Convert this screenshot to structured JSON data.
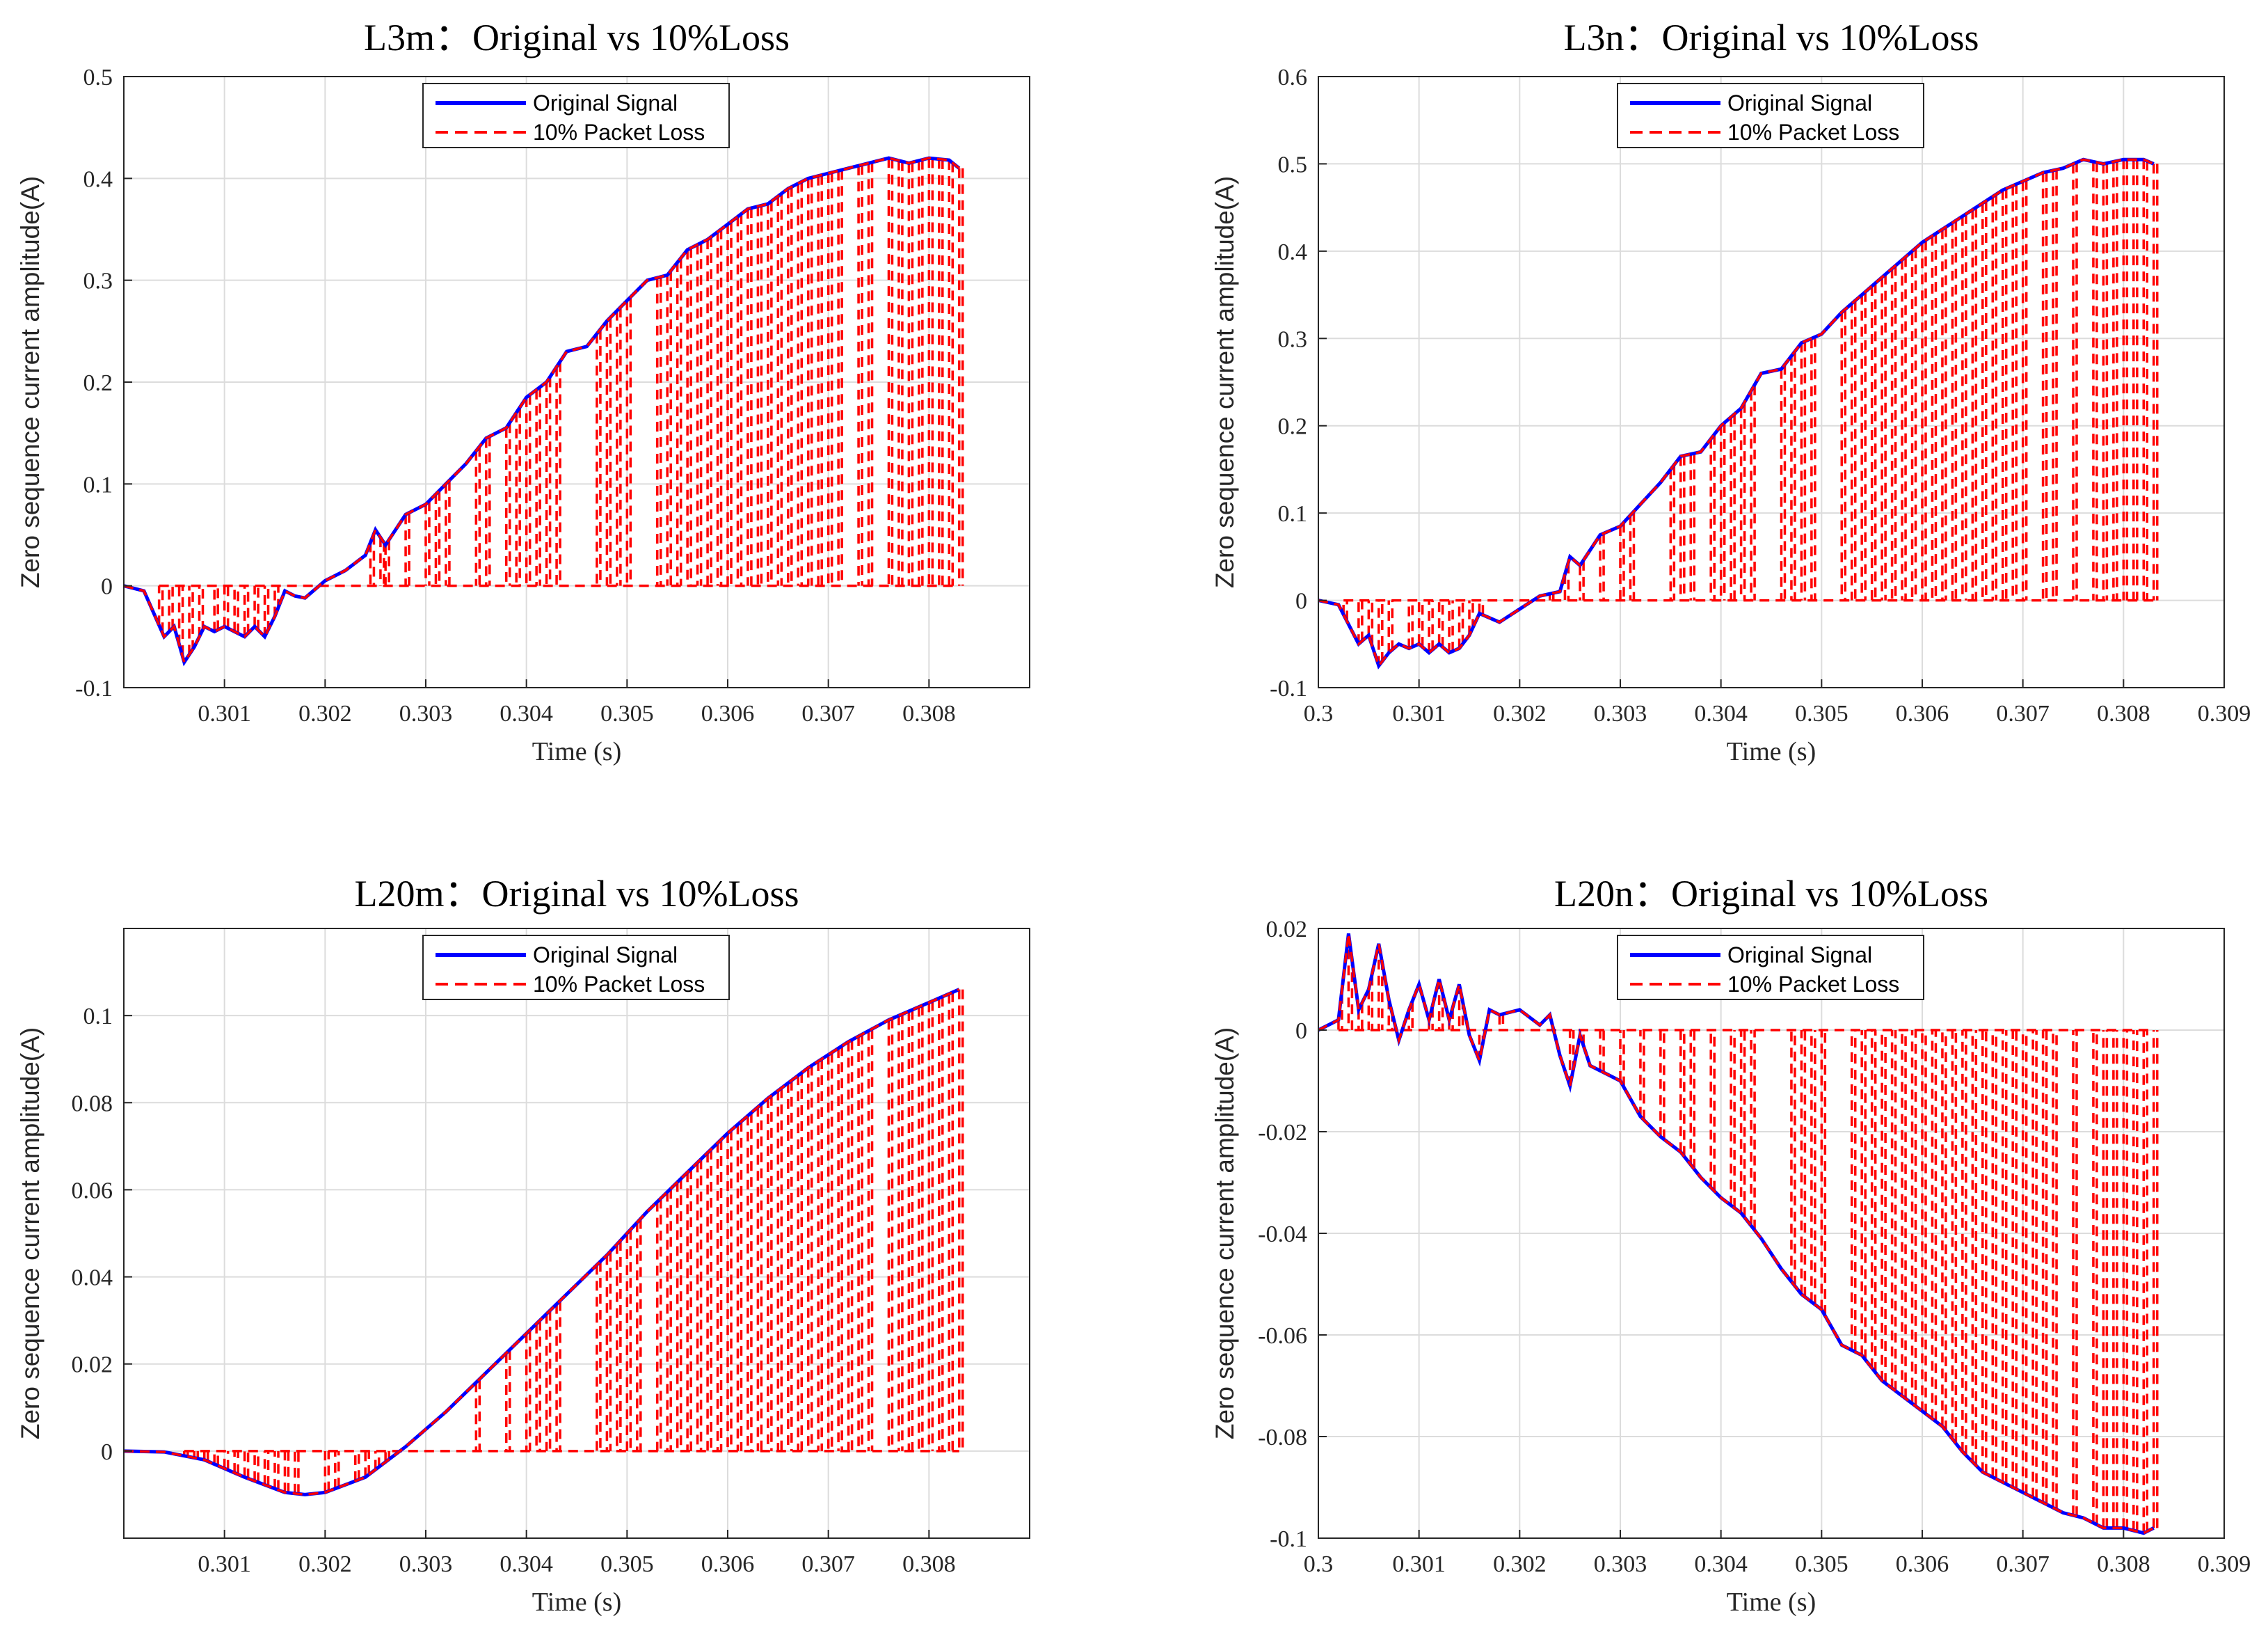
{
  "colors": {
    "original": "#0000ff",
    "loss": "#ff0000",
    "grid": "#dcdcdc",
    "axis": "#262626"
  },
  "chart_data": [
    {
      "type": "line",
      "title": "L3m：Original vs 10%Loss",
      "xlabel": "Time (s)",
      "ylabel": "Zero sequence current amplitude(A)",
      "xlim": [
        0.3,
        0.309
      ],
      "ylim": [
        -0.1,
        0.5
      ],
      "xticks": [
        0.301,
        0.302,
        0.303,
        0.304,
        0.305,
        0.306,
        0.307,
        0.308
      ],
      "xtick_labels": [
        "0.301",
        "0.302",
        "0.303",
        "0.304",
        "0.305",
        "0.306",
        "0.307",
        "0.308"
      ],
      "yticks": [
        -0.1,
        0,
        0.1,
        0.2,
        0.3,
        0.4,
        0.5
      ],
      "ytick_labels": [
        "-0.1",
        "0",
        "0.1",
        "0.2",
        "0.3",
        "0.4",
        "0.5"
      ],
      "legend": [
        "Original Signal",
        "10% Packet Loss"
      ],
      "legend_position": "top-center",
      "grid": true,
      "series": [
        {
          "name": "Original Signal",
          "style": "solid",
          "x": [
            0.3,
            0.3002,
            0.3004,
            0.3005,
            0.3006,
            0.3007,
            0.3008,
            0.3009,
            0.301,
            0.3011,
            0.3012,
            0.3013,
            0.3014,
            0.3015,
            0.3016,
            0.3017,
            0.3018,
            0.302,
            0.3022,
            0.3024,
            0.3025,
            0.3026,
            0.3028,
            0.303,
            0.3032,
            0.3034,
            0.3036,
            0.3038,
            0.304,
            0.3042,
            0.3044,
            0.3046,
            0.3048,
            0.305,
            0.3052,
            0.3054,
            0.3056,
            0.3058,
            0.306,
            0.3062,
            0.3064,
            0.3066,
            0.3068,
            0.307,
            0.3072,
            0.3074,
            0.3076,
            0.3078,
            0.308,
            0.3082,
            0.3083
          ],
          "y": [
            0,
            -0.005,
            -0.05,
            -0.04,
            -0.075,
            -0.06,
            -0.04,
            -0.045,
            -0.04,
            -0.045,
            -0.05,
            -0.04,
            -0.05,
            -0.03,
            -0.005,
            -0.01,
            -0.012,
            0.005,
            0.015,
            0.03,
            0.055,
            0.04,
            0.07,
            0.08,
            0.1,
            0.12,
            0.145,
            0.155,
            0.185,
            0.2,
            0.23,
            0.235,
            0.26,
            0.28,
            0.3,
            0.305,
            0.33,
            0.34,
            0.355,
            0.37,
            0.375,
            0.39,
            0.4,
            0.405,
            0.41,
            0.415,
            0.42,
            0.415,
            0.42,
            0.418,
            0.41
          ]
        },
        {
          "name": "10% Packet Loss",
          "style": "dashed",
          "follows": "Original Signal",
          "dropout_times": [
            0.30035,
            0.30045,
            0.30055,
            0.30065,
            0.30075,
            0.3009,
            0.301,
            0.3011,
            0.3012,
            0.3013,
            0.3014,
            0.3015,
            0.30245,
            0.30255,
            0.3026,
            0.3028,
            0.303,
            0.3031,
            0.3032,
            0.3035,
            0.3036,
            0.3038,
            0.3039,
            0.304,
            0.3041,
            0.3042,
            0.3043,
            0.3047,
            0.3048,
            0.3049,
            0.305,
            0.3053,
            0.3054,
            0.3055,
            0.3056,
            0.3057,
            0.3058,
            0.3059,
            0.306,
            0.3061,
            0.3062,
            0.3063,
            0.3064,
            0.3065,
            0.3066,
            0.3067,
            0.3068,
            0.3069,
            0.307,
            0.3071,
            0.3073,
            0.3074,
            0.3076,
            0.3077,
            0.3078,
            0.3079,
            0.308,
            0.3081,
            0.3082,
            0.3083
          ]
        }
      ]
    },
    {
      "type": "line",
      "title": "L3n：Original vs 10%Loss",
      "xlabel": "Time (s)",
      "ylabel": "Zero sequence current amplitude(A)",
      "xlim": [
        0.3,
        0.309
      ],
      "ylim": [
        -0.1,
        0.6
      ],
      "xticks": [
        0.3,
        0.301,
        0.302,
        0.303,
        0.304,
        0.305,
        0.306,
        0.307,
        0.308,
        0.309
      ],
      "xtick_labels": [
        "0.3",
        "0.301",
        "0.302",
        "0.303",
        "0.304",
        "0.305",
        "0.306",
        "0.307",
        "0.308",
        "0.309"
      ],
      "yticks": [
        -0.1,
        0,
        0.1,
        0.2,
        0.3,
        0.4,
        0.5,
        0.6
      ],
      "ytick_labels": [
        "-0.1",
        "0",
        "0.1",
        "0.2",
        "0.3",
        "0.4",
        "0.5",
        "0.6"
      ],
      "legend": [
        "Original Signal",
        "10% Packet Loss"
      ],
      "legend_position": "top-center",
      "grid": true,
      "series": [
        {
          "name": "Original Signal",
          "style": "solid",
          "x": [
            0.3,
            0.3002,
            0.3004,
            0.3005,
            0.3006,
            0.3007,
            0.3008,
            0.3009,
            0.301,
            0.3011,
            0.3012,
            0.3013,
            0.3014,
            0.3015,
            0.3016,
            0.3017,
            0.3018,
            0.302,
            0.3022,
            0.3024,
            0.3025,
            0.3026,
            0.3028,
            0.303,
            0.3032,
            0.3034,
            0.3036,
            0.3038,
            0.304,
            0.3042,
            0.3044,
            0.3046,
            0.3048,
            0.305,
            0.3052,
            0.3054,
            0.3056,
            0.3058,
            0.306,
            0.3062,
            0.3064,
            0.3066,
            0.3068,
            0.307,
            0.3072,
            0.3074,
            0.3076,
            0.3078,
            0.308,
            0.3082,
            0.3083
          ],
          "y": [
            0,
            -0.005,
            -0.05,
            -0.04,
            -0.075,
            -0.06,
            -0.05,
            -0.055,
            -0.05,
            -0.06,
            -0.05,
            -0.06,
            -0.055,
            -0.04,
            -0.015,
            -0.02,
            -0.025,
            -0.01,
            0.005,
            0.01,
            0.05,
            0.04,
            0.075,
            0.085,
            0.11,
            0.135,
            0.165,
            0.17,
            0.2,
            0.22,
            0.26,
            0.265,
            0.295,
            0.305,
            0.33,
            0.35,
            0.37,
            0.39,
            0.41,
            0.425,
            0.44,
            0.455,
            0.47,
            0.48,
            0.49,
            0.495,
            0.505,
            0.5,
            0.505,
            0.505,
            0.5
          ]
        },
        {
          "name": "10% Packet Loss",
          "style": "dashed",
          "follows": "Original Signal",
          "dropout_times": [
            0.30025,
            0.3004,
            0.3005,
            0.3006,
            0.3007,
            0.3009,
            0.301,
            0.3011,
            0.3012,
            0.3013,
            0.3014,
            0.3015,
            0.3016,
            0.3023,
            0.30245,
            0.3026,
            0.3028,
            0.303,
            0.3031,
            0.3035,
            0.3036,
            0.3037,
            0.3039,
            0.304,
            0.3041,
            0.3042,
            0.3043,
            0.3046,
            0.3047,
            0.3048,
            0.3049,
            0.3052,
            0.3053,
            0.3054,
            0.3055,
            0.3056,
            0.3057,
            0.3058,
            0.3059,
            0.306,
            0.3061,
            0.3062,
            0.3063,
            0.3064,
            0.3065,
            0.3066,
            0.3067,
            0.3068,
            0.3069,
            0.307,
            0.3072,
            0.3073,
            0.3075,
            0.3077,
            0.3078,
            0.3079,
            0.308,
            0.3081,
            0.3082,
            0.3083
          ]
        }
      ]
    },
    {
      "type": "line",
      "title": "L20m：Original vs 10%Loss",
      "xlabel": "Time (s)",
      "ylabel": "Zero sequence current amplitude(A)",
      "xlim": [
        0.3,
        0.309
      ],
      "ylim": [
        -0.02,
        0.12
      ],
      "xticks": [
        0.301,
        0.302,
        0.303,
        0.304,
        0.305,
        0.306,
        0.307,
        0.308
      ],
      "xtick_labels": [
        "0.301",
        "0.302",
        "0.303",
        "0.304",
        "0.305",
        "0.306",
        "0.307",
        "0.308"
      ],
      "yticks": [
        0,
        0.02,
        0.04,
        0.06,
        0.08,
        0.1
      ],
      "ytick_labels": [
        "0",
        "0.02",
        "0.04",
        "0.06",
        "0.08",
        "0.1"
      ],
      "legend": [
        "Original Signal",
        "10% Packet Loss"
      ],
      "legend_position": "top-center",
      "grid": true,
      "series": [
        {
          "name": "Original Signal",
          "style": "solid",
          "x": [
            0.3,
            0.3004,
            0.3008,
            0.3012,
            0.3016,
            0.3018,
            0.302,
            0.3024,
            0.3028,
            0.3032,
            0.3036,
            0.304,
            0.3044,
            0.3048,
            0.3052,
            0.3056,
            0.306,
            0.3064,
            0.3068,
            0.3072,
            0.3076,
            0.308,
            0.3083
          ],
          "y": [
            0,
            -0.0002,
            -0.002,
            -0.006,
            -0.0095,
            -0.01,
            -0.0095,
            -0.006,
            0.001,
            0.009,
            0.018,
            0.027,
            0.036,
            0.045,
            0.055,
            0.064,
            0.073,
            0.081,
            0.088,
            0.094,
            0.099,
            0.103,
            0.106
          ]
        },
        {
          "name": "10% Packet Loss",
          "style": "dashed",
          "follows": "Original Signal",
          "dropout_times": [
            0.3006,
            0.3007,
            0.3008,
            0.3009,
            0.301,
            0.3011,
            0.3012,
            0.3013,
            0.3014,
            0.3015,
            0.3016,
            0.3017,
            0.302,
            0.3021,
            0.3023,
            0.3024,
            0.3025,
            0.3026,
            0.3035,
            0.3038,
            0.304,
            0.3041,
            0.3042,
            0.3043,
            0.3047,
            0.3048,
            0.3049,
            0.305,
            0.3051,
            0.3053,
            0.3054,
            0.3055,
            0.3056,
            0.3057,
            0.3058,
            0.3059,
            0.306,
            0.3061,
            0.3062,
            0.3063,
            0.3064,
            0.3065,
            0.3066,
            0.3067,
            0.3068,
            0.3069,
            0.307,
            0.3071,
            0.3072,
            0.3073,
            0.3074,
            0.3076,
            0.3077,
            0.3078,
            0.3079,
            0.308,
            0.3081,
            0.3082,
            0.3083
          ]
        }
      ]
    },
    {
      "type": "line",
      "title": "L20n：Original vs 10%Loss",
      "xlabel": "Time (s)",
      "ylabel": "Zero sequence current amplitude(A)",
      "xlim": [
        0.3,
        0.309
      ],
      "ylim": [
        -0.1,
        0.02
      ],
      "xticks": [
        0.3,
        0.301,
        0.302,
        0.303,
        0.304,
        0.305,
        0.306,
        0.307,
        0.308,
        0.309
      ],
      "xtick_labels": [
        "0.3",
        "0.301",
        "0.302",
        "0.303",
        "0.304",
        "0.305",
        "0.306",
        "0.307",
        "0.308",
        "0.309"
      ],
      "yticks": [
        -0.1,
        -0.08,
        -0.06,
        -0.04,
        -0.02,
        0,
        0.02
      ],
      "ytick_labels": [
        "-0.1",
        "-0.08",
        "-0.06",
        "-0.04",
        "-0.02",
        "0",
        "0.02"
      ],
      "legend": [
        "Original Signal",
        "10% Packet Loss"
      ],
      "legend_position": "top-center",
      "grid": true,
      "series": [
        {
          "name": "Original Signal",
          "style": "solid",
          "x": [
            0.3,
            0.3002,
            0.3003,
            0.3004,
            0.3005,
            0.3006,
            0.3007,
            0.3008,
            0.3009,
            0.301,
            0.3011,
            0.3012,
            0.3013,
            0.3014,
            0.3015,
            0.3016,
            0.3017,
            0.3018,
            0.302,
            0.3022,
            0.3023,
            0.3024,
            0.3025,
            0.3026,
            0.3027,
            0.3028,
            0.303,
            0.3032,
            0.3034,
            0.3036,
            0.3038,
            0.304,
            0.3042,
            0.3044,
            0.3046,
            0.3048,
            0.305,
            0.3052,
            0.3054,
            0.3056,
            0.3058,
            0.306,
            0.3062,
            0.3064,
            0.3066,
            0.3068,
            0.307,
            0.3072,
            0.3074,
            0.3076,
            0.3078,
            0.308,
            0.3082,
            0.3083
          ],
          "y": [
            0,
            0.002,
            0.019,
            0.004,
            0.008,
            0.017,
            0.006,
            -0.002,
            0.004,
            0.009,
            0.002,
            0.01,
            0.002,
            0.009,
            -0.001,
            -0.006,
            0.004,
            0.003,
            0.004,
            0.001,
            0.003,
            -0.005,
            -0.011,
            -0.001,
            -0.007,
            -0.008,
            -0.01,
            -0.017,
            -0.021,
            -0.024,
            -0.029,
            -0.033,
            -0.036,
            -0.041,
            -0.047,
            -0.052,
            -0.055,
            -0.062,
            -0.064,
            -0.069,
            -0.072,
            -0.075,
            -0.078,
            -0.083,
            -0.087,
            -0.089,
            -0.091,
            -0.093,
            -0.095,
            -0.096,
            -0.098,
            -0.098,
            -0.099,
            -0.098
          ]
        },
        {
          "name": "10% Packet Loss",
          "style": "dashed",
          "follows": "Original Signal",
          "dropout_times": [
            0.3002,
            0.3003,
            0.3004,
            0.3005,
            0.3006,
            0.3007,
            0.3009,
            0.3011,
            0.3012,
            0.3013,
            0.3014,
            0.3016,
            0.3018,
            0.3025,
            0.3026,
            0.3028,
            0.303,
            0.3032,
            0.3034,
            0.3036,
            0.3037,
            0.3039,
            0.3041,
            0.3042,
            0.3043,
            0.3047,
            0.3048,
            0.3049,
            0.305,
            0.3053,
            0.3054,
            0.3055,
            0.3056,
            0.3057,
            0.3058,
            0.3059,
            0.306,
            0.3061,
            0.3062,
            0.3063,
            0.3064,
            0.3065,
            0.3066,
            0.3067,
            0.3068,
            0.3069,
            0.307,
            0.3071,
            0.3072,
            0.3073,
            0.3075,
            0.3077,
            0.3078,
            0.3079,
            0.308,
            0.3081,
            0.3082,
            0.3083
          ]
        }
      ]
    }
  ]
}
